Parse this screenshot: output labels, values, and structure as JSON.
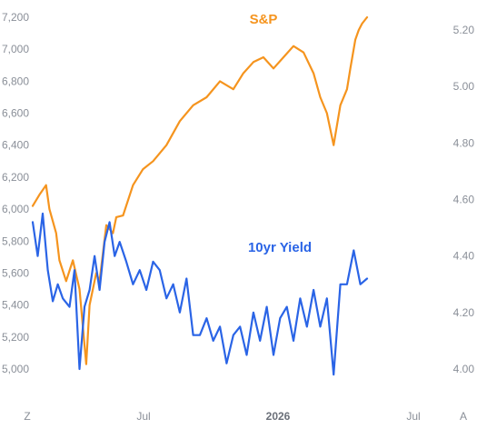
{
  "chart_data": {
    "type": "line",
    "x_ticks": [
      "Z",
      "Jul",
      "2026",
      "Jul",
      "A"
    ],
    "x_ticks_bold": [
      false,
      false,
      true,
      false,
      false
    ],
    "left_axis": {
      "ticks": [
        "7,200",
        "7,000",
        "6,800",
        "6,600",
        "6,400",
        "6,200",
        "6,000",
        "5,800",
        "5,600",
        "5,400",
        "5,200",
        "5,000"
      ],
      "ylim": [
        4880,
        7270
      ]
    },
    "right_axis": {
      "ticks": [
        "5.20",
        "5.00",
        "4.80",
        "4.60",
        "4.40",
        "4.20",
        "4.00"
      ],
      "ylim": [
        3.9,
        5.25
      ]
    },
    "series": [
      {
        "name": "S&P",
        "axis": "left",
        "color": "#f5941e",
        "x": [
          0,
          0.02,
          0.04,
          0.05,
          0.07,
          0.08,
          0.1,
          0.12,
          0.14,
          0.16,
          0.17,
          0.19,
          0.2,
          0.22,
          0.24,
          0.25,
          0.27,
          0.3,
          0.33,
          0.36,
          0.4,
          0.44,
          0.48,
          0.52,
          0.56,
          0.6,
          0.63,
          0.66,
          0.69,
          0.72,
          0.75,
          0.78,
          0.81,
          0.84,
          0.86,
          0.88,
          0.9,
          0.92,
          0.94,
          0.95,
          0.965,
          0.975,
          0.985,
          1.0
        ],
        "values": [
          6020,
          6090,
          6150,
          6000,
          5850,
          5680,
          5550,
          5680,
          5500,
          5030,
          5400,
          5600,
          5550,
          5900,
          5850,
          5950,
          5960,
          6150,
          6250,
          6300,
          6400,
          6550,
          6650,
          6700,
          6800,
          6750,
          6850,
          6920,
          6950,
          6880,
          6950,
          7020,
          6980,
          6850,
          6700,
          6600,
          6400,
          6650,
          6750,
          6880,
          7060,
          7120,
          7160,
          7200
        ]
      },
      {
        "name": "10yr Yield",
        "axis": "right",
        "color": "#2a64e6",
        "x": [
          0,
          0.015,
          0.03,
          0.045,
          0.06,
          0.075,
          0.09,
          0.11,
          0.125,
          0.14,
          0.155,
          0.17,
          0.185,
          0.2,
          0.215,
          0.23,
          0.245,
          0.26,
          0.28,
          0.3,
          0.32,
          0.34,
          0.36,
          0.38,
          0.4,
          0.42,
          0.44,
          0.46,
          0.48,
          0.5,
          0.52,
          0.54,
          0.56,
          0.58,
          0.6,
          0.62,
          0.64,
          0.66,
          0.68,
          0.7,
          0.72,
          0.74,
          0.76,
          0.78,
          0.8,
          0.82,
          0.84,
          0.86,
          0.88,
          0.9,
          0.92,
          0.94,
          0.96,
          0.98,
          1.0
        ],
        "values": [
          4.52,
          4.4,
          4.55,
          4.35,
          4.24,
          4.3,
          4.25,
          4.22,
          4.35,
          4.0,
          4.22,
          4.28,
          4.4,
          4.28,
          4.45,
          4.52,
          4.4,
          4.45,
          4.38,
          4.3,
          4.35,
          4.28,
          4.38,
          4.35,
          4.25,
          4.3,
          4.2,
          4.32,
          4.12,
          4.12,
          4.18,
          4.1,
          4.15,
          4.02,
          4.12,
          4.15,
          4.05,
          4.2,
          4.1,
          4.22,
          4.05,
          4.18,
          4.22,
          4.1,
          4.25,
          4.15,
          4.28,
          4.15,
          4.25,
          3.98,
          4.3,
          4.3,
          4.42,
          4.3,
          4.32
        ]
      }
    ],
    "grid": false,
    "legend": "inline labels near each series"
  }
}
